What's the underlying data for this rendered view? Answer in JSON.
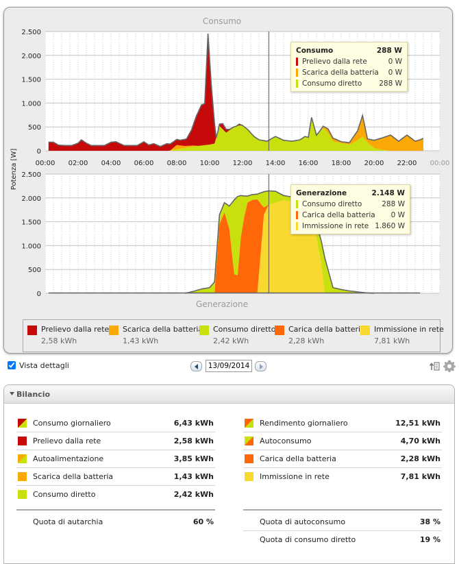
{
  "colors": {
    "prelievo": "#c60a0a",
    "scarica": "#f9a806",
    "consumo_diretto": "#c8e00d",
    "carica": "#ff6808",
    "immissione": "#f9d830",
    "outline": "#666666",
    "grid": "#d2d2d2",
    "plot_bg": "#ffffff"
  },
  "chart_data": [
    {
      "type": "area",
      "title": "Consumo",
      "ylabel": "Potenza [W]",
      "ylim": [
        0,
        2500
      ],
      "yticks": [
        0,
        500,
        1000,
        1500,
        2000,
        2500
      ],
      "ytick_labels": [
        "0",
        "500",
        "1.000",
        "1.500",
        "2.000",
        "2.500"
      ],
      "xlim": [
        0,
        24
      ],
      "xticks": [
        0,
        2,
        4,
        6,
        8,
        10,
        12,
        14,
        16,
        18,
        20,
        22,
        24
      ],
      "xtick_labels": [
        "00:00",
        "02:00",
        "04:00",
        "06:00",
        "08:00",
        "10:00",
        "12:00",
        "14:00",
        "16:00",
        "18:00",
        "20:00",
        "22:00",
        "00:00"
      ],
      "cursor_time": 13.6,
      "stacked": true,
      "series": [
        {
          "name": "Consumo diretto",
          "color_key": "consumo_diretto",
          "x": [
            7.5,
            8,
            8.5,
            9,
            9.5,
            10,
            10.3,
            10.6,
            11,
            11.5,
            11.8,
            12,
            12.3,
            12.7,
            13,
            13.5,
            14,
            14.5,
            15,
            15.5,
            15.8,
            16,
            16.2,
            16.5,
            16.9,
            17.2,
            17.5,
            18,
            18.5,
            19,
            19.3,
            19.6,
            20,
            20.5,
            21
          ],
          "y": [
            0,
            30,
            60,
            90,
            110,
            130,
            150,
            520,
            380,
            500,
            530,
            530,
            450,
            300,
            230,
            200,
            300,
            220,
            200,
            230,
            300,
            280,
            700,
            320,
            480,
            380,
            200,
            160,
            130,
            220,
            300,
            170,
            60,
            20,
            0
          ]
        },
        {
          "name": "Scarica della batteria",
          "color_key": "scarica",
          "x": [
            7.6,
            8,
            8.5,
            9,
            9.3,
            16.4,
            16.8,
            17.2,
            17.6,
            18,
            18.5,
            19,
            19.3,
            19.6,
            20,
            20.5,
            21,
            21.5,
            22,
            22.5,
            22.8,
            23
          ],
          "y": [
            0,
            90,
            40,
            20,
            0,
            0,
            20,
            80,
            60,
            30,
            40,
            200,
            440,
            80,
            160,
            250,
            330,
            200,
            330,
            200,
            230,
            260
          ]
        },
        {
          "name": "Prelievo dalla rete",
          "color_key": "prelievo",
          "x": [
            0.2,
            0.5,
            0.8,
            1.2,
            1.6,
            2,
            2.2,
            2.5,
            2.8,
            3.2,
            3.6,
            4,
            4.3,
            4.8,
            5.2,
            5.6,
            6,
            6.3,
            6.6,
            7,
            7.4,
            7.7,
            8.2,
            8.6,
            8.9,
            9.2,
            9.5,
            9.7,
            9.9,
            10.1,
            10.4,
            10.5,
            10.8,
            11.2,
            11.6,
            11.8,
            12.0
          ],
          "y": [
            180,
            180,
            120,
            110,
            110,
            160,
            230,
            160,
            110,
            110,
            110,
            180,
            190,
            110,
            110,
            110,
            190,
            120,
            150,
            90,
            150,
            130,
            110,
            150,
            330,
            630,
            850,
            870,
            2330,
            1250,
            0,
            0,
            120,
            20,
            0,
            30,
            0
          ]
        }
      ],
      "tooltip": {
        "title": "Consumo",
        "total": "288 W",
        "rows": [
          {
            "label": "Prelievo dalla rete",
            "value": "0 W",
            "color_key": "prelievo"
          },
          {
            "label": "Scarica della batteria",
            "value": "0 W",
            "color_key": "scarica"
          },
          {
            "label": "Consumo diretto",
            "value": "288 W",
            "color_key": "consumo_diretto"
          }
        ]
      }
    },
    {
      "type": "area",
      "title": "Generazione",
      "ylim": [
        0,
        2500
      ],
      "yticks": [
        0,
        500,
        1000,
        1500,
        2000,
        2500
      ],
      "ytick_labels": [
        "0",
        "500",
        "1.000",
        "1.500",
        "2.000",
        "2.500"
      ],
      "xlim": [
        0,
        24
      ],
      "cursor_time": 13.6,
      "stacked": true,
      "baseline_range": [
        0.2,
        22.8
      ],
      "series": [
        {
          "name": "Immissione in rete",
          "color_key": "immissione",
          "x": [
            8.5,
            9,
            9.5,
            10,
            10.3,
            10.6,
            10.9,
            11.2,
            11.5,
            11.7,
            11.9,
            12.1,
            12.3,
            12.6,
            12.9,
            13.3,
            13.6,
            14,
            14.5,
            15,
            15.5,
            16,
            16.4,
            16.8,
            17.0,
            17.5,
            18,
            18.5,
            19,
            19.5,
            20
          ],
          "y": [
            0,
            0,
            0,
            0,
            0,
            0,
            0,
            0,
            0,
            0,
            0,
            0,
            0,
            0,
            0,
            1650,
            1860,
            1900,
            1950,
            1920,
            1850,
            1700,
            1350,
            600,
            0,
            0,
            0,
            0,
            0,
            0,
            0
          ]
        },
        {
          "name": "Carica della batteria",
          "color_key": "carica",
          "x": [
            8.5,
            9,
            9.5,
            10,
            10.3,
            10.6,
            10.9,
            11.2,
            11.5,
            11.7,
            11.9,
            12.1,
            12.3,
            12.6,
            12.9,
            13.3,
            13.6,
            14,
            14.5,
            15,
            15.5,
            16,
            16.4,
            16.8,
            17.0,
            17.5,
            18,
            18.5,
            19,
            19.5,
            20
          ],
          "y": [
            0,
            0,
            0,
            0,
            20,
            1450,
            1700,
            1350,
            400,
            380,
            1180,
            1600,
            1900,
            1960,
            1970,
            150,
            0,
            0,
            0,
            0,
            0,
            0,
            0,
            0,
            0,
            0,
            0,
            0,
            0,
            0,
            0
          ]
        },
        {
          "name": "Consumo diretto",
          "color_key": "consumo_diretto",
          "x": [
            8.5,
            9,
            9.5,
            10,
            10.3,
            10.6,
            10.9,
            11.2,
            11.5,
            11.7,
            11.9,
            12.1,
            12.3,
            12.6,
            12.9,
            13.3,
            13.6,
            14,
            14.5,
            15,
            15.5,
            16,
            16.4,
            16.8,
            17.0,
            17.5,
            18,
            18.5,
            19,
            19.5,
            20
          ],
          "y": [
            0,
            40,
            90,
            120,
            220,
            200,
            200,
            480,
            1560,
            1650,
            870,
            440,
            140,
            110,
            110,
            330,
            288,
            240,
            100,
            100,
            100,
            150,
            250,
            480,
            750,
            120,
            80,
            50,
            30,
            10,
            0
          ]
        }
      ],
      "tooltip": {
        "title": "Generazione",
        "total": "2.148 W",
        "rows": [
          {
            "label": "Consumo diretto",
            "value": "288 W",
            "color_key": "consumo_diretto"
          },
          {
            "label": "Carica della batteria",
            "value": "0 W",
            "color_key": "carica"
          },
          {
            "label": "Immissione in rete",
            "value": "1.860 W",
            "color_key": "immissione"
          }
        ]
      }
    }
  ],
  "legend": [
    {
      "label": "Prelievo dalla rete",
      "value": "2,58 kWh",
      "color_key": "prelievo"
    },
    {
      "label": "Scarica della batteria",
      "value": "1,43 kWh",
      "color_key": "scarica"
    },
    {
      "label": "Consumo diretto",
      "value": "2,42 kWh",
      "color_key": "consumo_diretto"
    },
    {
      "label": "Carica della batteria",
      "value": "2,28 kWh",
      "color_key": "carica"
    },
    {
      "label": "Immissione in rete",
      "value": "7,81 kWh",
      "color_key": "immissione"
    }
  ],
  "toolbar": {
    "vista_dettagli_label": "Vista dettagli",
    "vista_dettagli_checked": true,
    "date": "13/09/2014"
  },
  "bilancio": {
    "title": "Bilancio",
    "left": [
      {
        "label": "Consumo giornaliero",
        "value": "6,43 kWh",
        "swatch": "prelievo+consumo_diretto"
      },
      {
        "label": "Prelievo dalla rete",
        "value": "2,58 kWh",
        "swatch": "prelievo"
      },
      {
        "label": "Autoalimentazione",
        "value": "3,85 kWh",
        "swatch": "scarica+consumo_diretto"
      },
      {
        "label": "Scarica della batteria",
        "value": "1,43 kWh",
        "swatch": "scarica"
      },
      {
        "label": "Consumo diretto",
        "value": "2,42 kWh",
        "swatch": "consumo_diretto"
      }
    ],
    "right": [
      {
        "label": "Rendimento giornaliero",
        "value": "12,51 kWh",
        "swatch": "carica+consumo_diretto"
      },
      {
        "label": "Autoconsumo",
        "value": "4,70 kWh",
        "swatch": "consumo_diretto+carica"
      },
      {
        "label": "Carica della batteria",
        "value": "2,28 kWh",
        "swatch": "carica"
      },
      {
        "label": "Immissione in rete",
        "value": "7,81 kWh",
        "swatch": "immissione"
      }
    ],
    "left_quota": [
      {
        "label": "Quota di autarchia",
        "value": "60 %"
      }
    ],
    "right_quota": [
      {
        "label": "Quota di autoconsumo",
        "value": "38 %"
      },
      {
        "label": "Quota di consumo diretto",
        "value": "19 %"
      }
    ]
  }
}
